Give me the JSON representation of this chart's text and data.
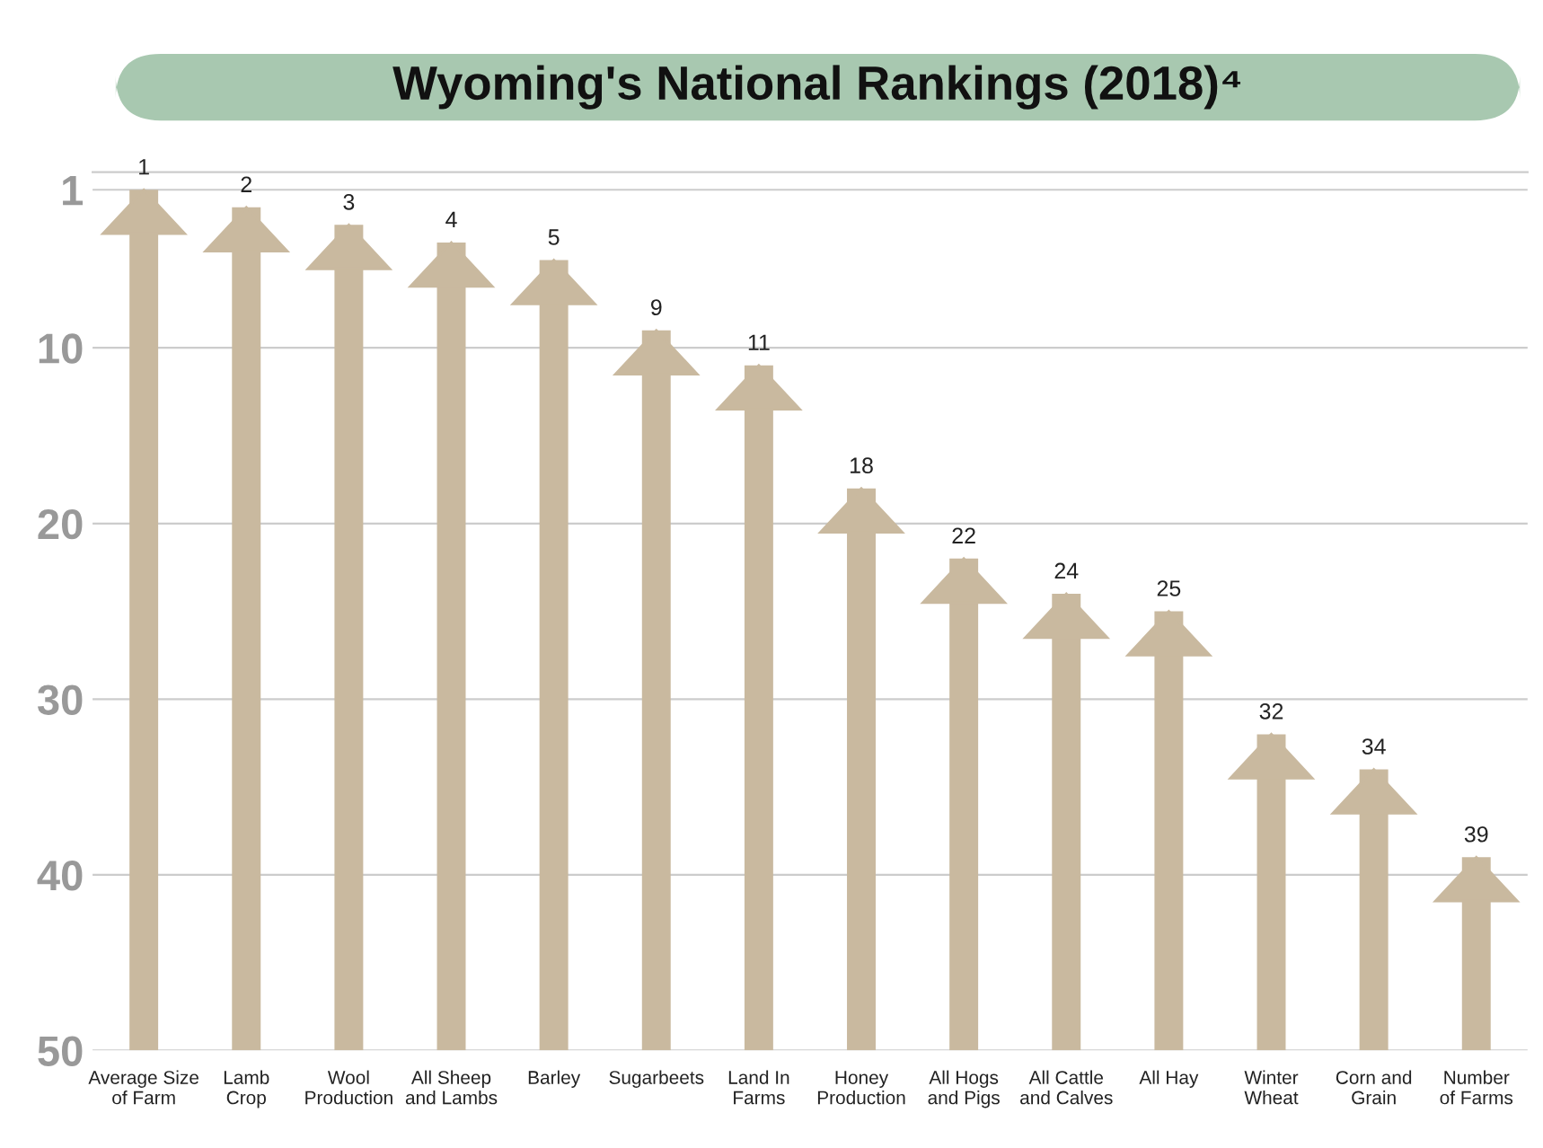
{
  "chart_data": {
    "type": "bar",
    "title": "Wyoming's National Rankings (2018)⁴",
    "categories": [
      "Average Size\nof Farm",
      "Lamb\nCrop",
      "Wool\nProduction",
      "All Sheep\nand Lambs",
      "Barley",
      "Sugarbeets",
      "Land In\nFarms",
      "Honey\nProduction",
      "All Hogs\nand Pigs",
      "All Cattle\nand Calves",
      "All Hay",
      "Winter\nWheat",
      "Corn and\nGrain",
      "Number\nof Farms"
    ],
    "base": [
      50,
      50,
      50,
      50,
      50,
      50,
      50,
      50,
      50,
      50,
      50,
      50,
      50,
      50
    ],
    "values": [
      -49,
      -48,
      -47,
      -46,
      -45,
      -41,
      -39,
      -32,
      -28,
      -26,
      -25,
      -18,
      -16,
      -11
    ],
    "value_labels": [
      "1",
      "2",
      "3",
      "4",
      "5",
      "9",
      "11",
      "18",
      "22",
      "24",
      "25",
      "32",
      "34",
      "39"
    ],
    "color": "#c9b99f",
    "ylim": [
      50,
      0
    ],
    "yticks": [
      1,
      10,
      20,
      30,
      40,
      50
    ],
    "grid": "y"
  }
}
